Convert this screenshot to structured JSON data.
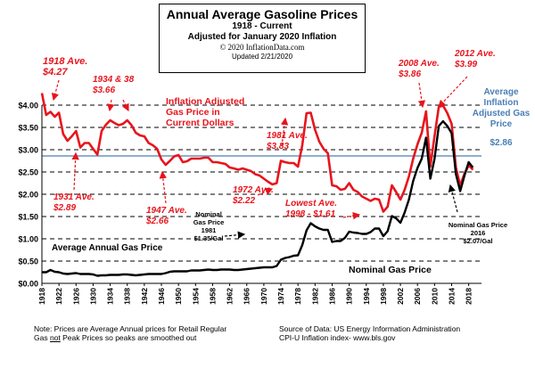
{
  "header": {
    "title": "Annual Average Gasoline Prices",
    "subtitle1": "1918 - Current",
    "subtitle2": "Adjusted for January 2020 Inflation",
    "copyright": "© 2020 InflationData.com",
    "updated": "Updated   2/21/2020"
  },
  "notes": {
    "left_line1": "Note:  Prices are Average Annual prices for Retail Regular",
    "left_line2_a": "Gas ",
    "left_line2_not": "not",
    "left_line2_b": " Peak Prices so peaks are smoothed out",
    "right_line1": "Source of Data:  US Energy Information Administration",
    "right_line2": "CPI-U Inflation index-     www.bls.gov"
  },
  "annotations": {
    "a1918": [
      "1918 Ave.",
      "$4.27"
    ],
    "a1934": [
      "1934 & 38",
      "$3.66"
    ],
    "inflation": [
      "Inflation Adjusted",
      "Gas Price in",
      "Current Dollars"
    ],
    "a1931": [
      "1931 Ave.",
      "$2.89"
    ],
    "a1947": [
      "1947 Ave.",
      "$2.66"
    ],
    "a1972": [
      "1972 Ave.",
      "$2.22"
    ],
    "a1981": [
      "1981 Ave.",
      "$3.83"
    ],
    "lowest": [
      "Lowest  Ave.",
      "1998 - $1.61"
    ],
    "a2008": [
      "2008 Ave.",
      "$3.86"
    ],
    "a2012": [
      "2012 Ave.",
      "$3.99"
    ],
    "avg_infl": [
      "Average",
      "Inflation",
      "Adjusted Gas",
      "Price"
    ],
    "avg_infl_value": "$2.86",
    "avg_annual": "Average Annual Gas Price",
    "nominal_label": "Nominal Gas Price",
    "nom1981": [
      "Nominal",
      "Gas Price",
      "1981",
      "$1.35/Gal"
    ],
    "nom2016": [
      "Nominal Gas Price",
      "2016",
      "$2.07/Gal"
    ]
  },
  "colors": {
    "inflation_series": "#e8141c",
    "nominal_series": "#000000",
    "average_line": "#4a7fb5",
    "annotation_red": "#e8141c",
    "annotation_blue": "#4a7fb5"
  },
  "chart_data": {
    "type": "line",
    "title": "Annual Average Gasoline Prices",
    "xlabel": "",
    "ylabel": "",
    "xlim": [
      1918,
      2021
    ],
    "ylim": [
      0,
      4
    ],
    "x_ticks": [
      "1918",
      "1922",
      "1926",
      "1930",
      "1934",
      "1938",
      "1942",
      "1946",
      "1950",
      "1954",
      "1958",
      "1962",
      "1966",
      "1970",
      "1974",
      "1978",
      "1982",
      "1986",
      "1990",
      "1994",
      "1998",
      "2002",
      "2006",
      "2010",
      "2014",
      "2018"
    ],
    "y_ticks": [
      "$0.00",
      "$0.50",
      "$1.00",
      "$1.50",
      "$2.00",
      "$2.50",
      "$3.00",
      "$3.50",
      "$4.00"
    ],
    "grid": "horizontal dashed",
    "average_inflation_adjusted": 2.86,
    "series": [
      {
        "name": "Inflation Adjusted Gas Price in Current Dollars",
        "x": [
          1918,
          1919,
          1920,
          1921,
          1922,
          1923,
          1924,
          1925,
          1926,
          1927,
          1928,
          1929,
          1930,
          1931,
          1932,
          1933,
          1934,
          1935,
          1936,
          1937,
          1938,
          1939,
          1940,
          1941,
          1942,
          1943,
          1944,
          1945,
          1946,
          1947,
          1948,
          1949,
          1950,
          1951,
          1952,
          1953,
          1954,
          1955,
          1956,
          1957,
          1958,
          1959,
          1960,
          1961,
          1962,
          1963,
          1964,
          1965,
          1966,
          1967,
          1968,
          1969,
          1970,
          1971,
          1972,
          1973,
          1974,
          1975,
          1976,
          1977,
          1978,
          1979,
          1980,
          1981,
          1982,
          1983,
          1984,
          1985,
          1986,
          1987,
          1988,
          1989,
          1990,
          1991,
          1992,
          1993,
          1994,
          1995,
          1996,
          1997,
          1998,
          1999,
          2000,
          2001,
          2002,
          2003,
          2004,
          2005,
          2006,
          2007,
          2008,
          2009,
          2010,
          2011,
          2012,
          2013,
          2014,
          2015,
          2016,
          2017,
          2018,
          2019
        ],
        "values": [
          4.27,
          3.78,
          3.85,
          3.74,
          3.83,
          3.35,
          3.2,
          3.3,
          3.42,
          3.05,
          3.15,
          3.15,
          3.02,
          2.89,
          3.42,
          3.56,
          3.66,
          3.6,
          3.55,
          3.58,
          3.66,
          3.55,
          3.38,
          3.32,
          3.3,
          3.15,
          3.1,
          3.02,
          2.78,
          2.66,
          2.75,
          2.85,
          2.88,
          2.72,
          2.74,
          2.8,
          2.8,
          2.8,
          2.82,
          2.82,
          2.72,
          2.72,
          2.7,
          2.68,
          2.6,
          2.58,
          2.55,
          2.58,
          2.55,
          2.52,
          2.45,
          2.42,
          2.35,
          2.28,
          2.22,
          2.25,
          2.75,
          2.72,
          2.7,
          2.7,
          2.62,
          3.1,
          3.82,
          3.83,
          3.45,
          3.18,
          3.02,
          2.92,
          2.2,
          2.18,
          2.1,
          2.12,
          2.25,
          2.1,
          2.05,
          1.95,
          1.9,
          1.85,
          1.9,
          1.88,
          1.61,
          1.72,
          2.2,
          2.05,
          1.88,
          2.1,
          2.4,
          2.8,
          3.12,
          3.38,
          3.86,
          2.62,
          3.3,
          3.96,
          3.99,
          3.82,
          3.58,
          2.6,
          2.2,
          2.46,
          2.65,
          2.55
        ]
      },
      {
        "name": "Nominal Gas Price",
        "x": [
          1918,
          1919,
          1920,
          1921,
          1922,
          1923,
          1924,
          1925,
          1926,
          1927,
          1928,
          1929,
          1930,
          1931,
          1932,
          1933,
          1934,
          1935,
          1936,
          1937,
          1938,
          1939,
          1940,
          1941,
          1942,
          1943,
          1944,
          1945,
          1946,
          1947,
          1948,
          1949,
          1950,
          1951,
          1952,
          1953,
          1954,
          1955,
          1956,
          1957,
          1958,
          1959,
          1960,
          1961,
          1962,
          1963,
          1964,
          1965,
          1966,
          1967,
          1968,
          1969,
          1970,
          1971,
          1972,
          1973,
          1974,
          1975,
          1976,
          1977,
          1978,
          1979,
          1980,
          1981,
          1982,
          1983,
          1984,
          1985,
          1986,
          1987,
          1988,
          1989,
          1990,
          1991,
          1992,
          1993,
          1994,
          1995,
          1996,
          1997,
          1998,
          1999,
          2000,
          2001,
          2002,
          2003,
          2004,
          2005,
          2006,
          2007,
          2008,
          2009,
          2010,
          2011,
          2012,
          2013,
          2014,
          2015,
          2016,
          2017,
          2018,
          2019
        ],
        "values": [
          0.25,
          0.25,
          0.3,
          0.26,
          0.25,
          0.22,
          0.21,
          0.22,
          0.23,
          0.21,
          0.21,
          0.21,
          0.2,
          0.17,
          0.18,
          0.18,
          0.19,
          0.19,
          0.19,
          0.2,
          0.2,
          0.19,
          0.18,
          0.19,
          0.2,
          0.21,
          0.21,
          0.21,
          0.21,
          0.23,
          0.26,
          0.27,
          0.27,
          0.27,
          0.27,
          0.29,
          0.29,
          0.29,
          0.3,
          0.31,
          0.3,
          0.3,
          0.31,
          0.31,
          0.31,
          0.3,
          0.3,
          0.31,
          0.32,
          0.33,
          0.34,
          0.35,
          0.36,
          0.36,
          0.36,
          0.39,
          0.53,
          0.57,
          0.59,
          0.62,
          0.63,
          0.86,
          1.19,
          1.35,
          1.28,
          1.23,
          1.2,
          1.2,
          0.93,
          0.95,
          0.95,
          1.02,
          1.16,
          1.14,
          1.13,
          1.11,
          1.11,
          1.15,
          1.23,
          1.23,
          1.06,
          1.17,
          1.51,
          1.46,
          1.36,
          1.59,
          1.88,
          2.3,
          2.59,
          2.8,
          3.27,
          2.35,
          2.79,
          3.53,
          3.64,
          3.53,
          3.37,
          2.45,
          2.07,
          2.42,
          2.72,
          2.6
        ]
      }
    ]
  }
}
